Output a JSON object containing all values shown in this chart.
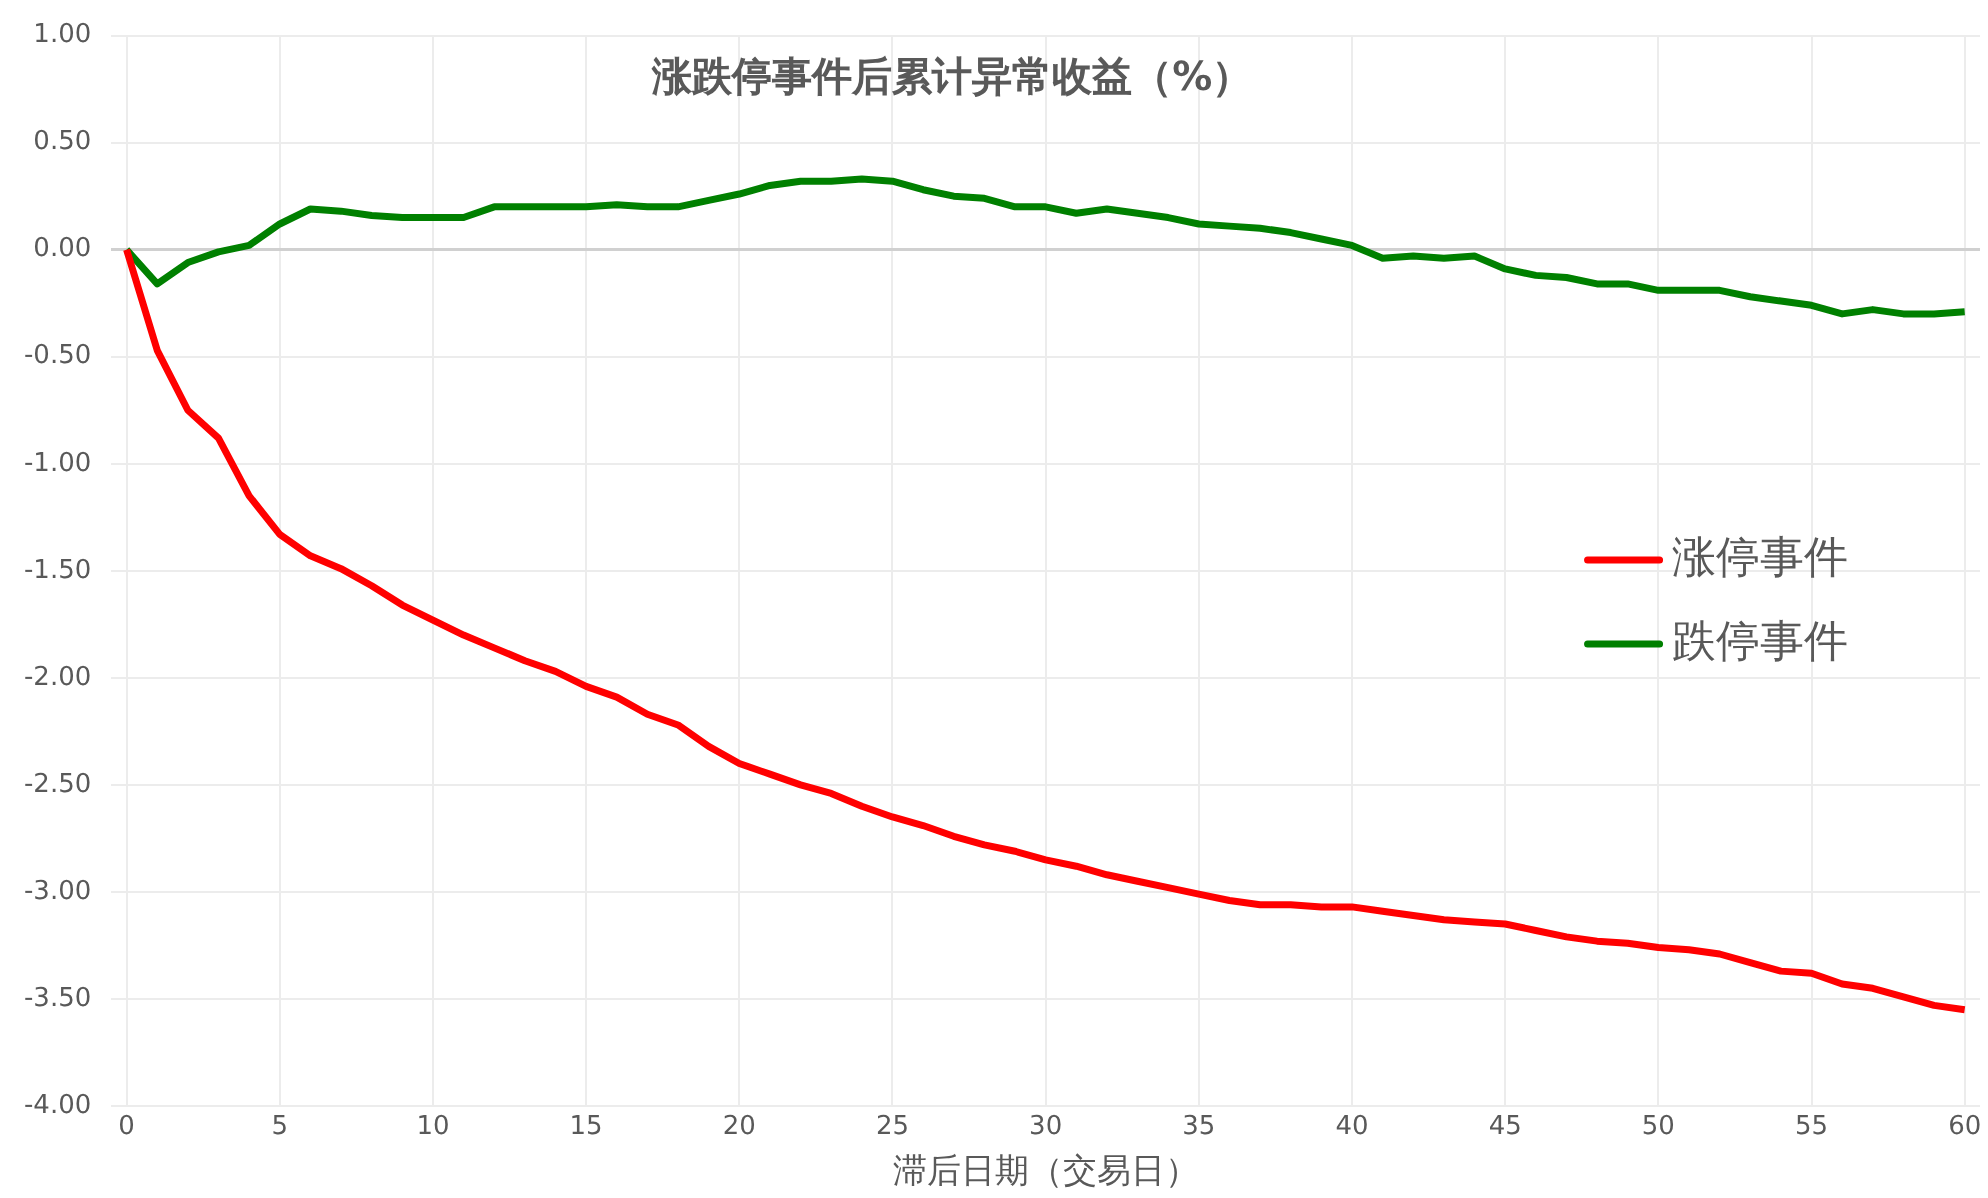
{
  "chart_data": {
    "type": "line",
    "title": "涨跌停事件后累计异常收益（%）",
    "xlabel": "滞后日期（交易日）",
    "x": [
      0,
      1,
      2,
      3,
      4,
      5,
      6,
      7,
      8,
      9,
      10,
      11,
      12,
      13,
      14,
      15,
      16,
      17,
      18,
      19,
      20,
      21,
      22,
      23,
      24,
      25,
      26,
      27,
      28,
      29,
      30,
      31,
      32,
      33,
      34,
      35,
      36,
      37,
      38,
      39,
      40,
      41,
      42,
      43,
      44,
      45,
      46,
      47,
      48,
      49,
      50,
      51,
      52,
      53,
      54,
      55,
      56,
      57,
      58,
      59,
      60
    ],
    "xlim": [
      -0.5,
      60.5
    ],
    "xticks": [
      0,
      5,
      10,
      15,
      20,
      25,
      30,
      35,
      40,
      45,
      50,
      55,
      60
    ],
    "ylim": [
      -4,
      1
    ],
    "yticks": [
      {
        "value": -4,
        "label": "-4.00"
      },
      {
        "value": -3.5,
        "label": "-3.50"
      },
      {
        "value": -3,
        "label": "-3.00"
      },
      {
        "value": -2.5,
        "label": "-2.50"
      },
      {
        "value": -2,
        "label": "-2.00"
      },
      {
        "value": -1.5,
        "label": "-1.50"
      },
      {
        "value": -1,
        "label": "-1.00"
      },
      {
        "value": -0.5,
        "label": "-0.50"
      },
      {
        "value": 0,
        "label": "0.00"
      },
      {
        "value": 0.5,
        "label": "0.50"
      },
      {
        "value": 1,
        "label": "1.00"
      }
    ],
    "grid": true,
    "legend": "right",
    "marker": "none",
    "line_style": "solid",
    "series": [
      {
        "name": "涨停事件",
        "color": "#ff0000",
        "values": [
          0,
          -0.47,
          -0.75,
          -0.88,
          -1.15,
          -1.33,
          -1.43,
          -1.49,
          -1.57,
          -1.66,
          -1.73,
          -1.8,
          -1.86,
          -1.92,
          -1.97,
          -2.04,
          -2.09,
          -2.17,
          -2.22,
          -2.32,
          -2.4,
          -2.45,
          -2.5,
          -2.54,
          -2.6,
          -2.65,
          -2.69,
          -2.74,
          -2.78,
          -2.81,
          -2.85,
          -2.88,
          -2.92,
          -2.95,
          -2.98,
          -3.01,
          -3.04,
          -3.06,
          -3.06,
          -3.07,
          -3.07,
          -3.09,
          -3.11,
          -3.13,
          -3.14,
          -3.15,
          -3.18,
          -3.21,
          -3.23,
          -3.24,
          -3.26,
          -3.27,
          -3.29,
          -3.33,
          -3.37,
          -3.38,
          -3.43,
          -3.45,
          -3.49,
          -3.53,
          -3.55
        ]
      },
      {
        "name": "跌停事件",
        "color": "#008000",
        "values": [
          0,
          -0.16,
          -0.06,
          -0.01,
          0.02,
          0.12,
          0.19,
          0.18,
          0.16,
          0.15,
          0.15,
          0.15,
          0.2,
          0.2,
          0.2,
          0.2,
          0.21,
          0.2,
          0.2,
          0.23,
          0.26,
          0.3,
          0.32,
          0.32,
          0.33,
          0.32,
          0.28,
          0.25,
          0.24,
          0.2,
          0.2,
          0.17,
          0.19,
          0.17,
          0.15,
          0.12,
          0.11,
          0.1,
          0.08,
          0.05,
          0.02,
          -0.04,
          -0.03,
          -0.04,
          -0.03,
          -0.09,
          -0.12,
          -0.13,
          -0.16,
          -0.16,
          -0.19,
          -0.19,
          -0.19,
          -0.22,
          -0.24,
          -0.26,
          -0.3,
          -0.28,
          -0.3,
          -0.3,
          -0.29
        ]
      }
    ]
  }
}
